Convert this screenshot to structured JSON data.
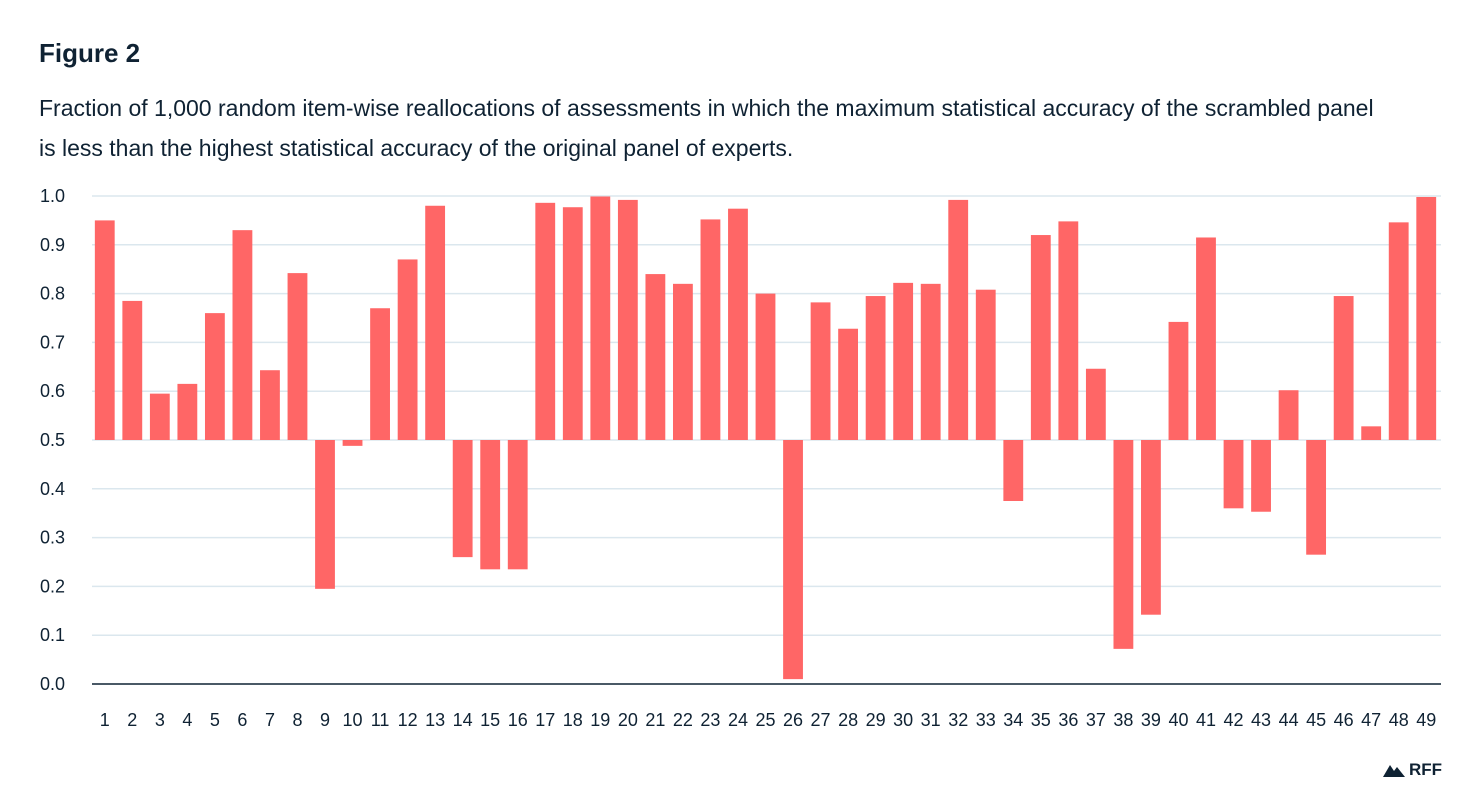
{
  "figure_label": "Figure 2",
  "chart_data": {
    "type": "bar",
    "title": "Fraction of 1,000 random item-wise reallocations of assessments in which the maximum statistical accuracy of the scrambled panel is less than the highest statistical accuracy of the original panel of experts.",
    "xlabel": "",
    "ylabel": "",
    "baseline": 0.5,
    "ylim": [
      0,
      1
    ],
    "yticks": [
      "0.0",
      "0.1",
      "0.2",
      "0.3",
      "0.4",
      "0.5",
      "0.6",
      "0.7",
      "0.8",
      "0.9",
      "1.0"
    ],
    "categories": [
      "1",
      "2",
      "3",
      "4",
      "5",
      "6",
      "7",
      "8",
      "9",
      "10",
      "11",
      "12",
      "13",
      "14",
      "15",
      "16",
      "17",
      "18",
      "19",
      "20",
      "21",
      "22",
      "23",
      "24",
      "25",
      "26",
      "27",
      "28",
      "29",
      "30",
      "31",
      "32",
      "33",
      "34",
      "35",
      "36",
      "37",
      "38",
      "39",
      "40",
      "41",
      "42",
      "43",
      "44",
      "45",
      "46",
      "47",
      "48",
      "49"
    ],
    "values": [
      0.95,
      0.785,
      0.595,
      0.615,
      0.76,
      0.93,
      0.643,
      0.842,
      0.195,
      0.488,
      0.77,
      0.87,
      0.98,
      0.26,
      0.235,
      0.235,
      0.986,
      0.977,
      0.999,
      0.992,
      0.84,
      0.82,
      0.952,
      0.974,
      0.8,
      0.01,
      0.782,
      0.728,
      0.795,
      0.822,
      0.82,
      0.992,
      0.808,
      0.375,
      0.92,
      0.948,
      0.646,
      0.072,
      0.142,
      0.742,
      0.915,
      0.36,
      0.353,
      0.602,
      0.265,
      0.795,
      0.528,
      0.946,
      0.998
    ],
    "grid": true,
    "legend": "none",
    "colors": {
      "bar": "#ff6666",
      "grid": "#dbe7ee",
      "axis": "#0f2233",
      "text": "#0f2233"
    }
  },
  "brand": {
    "logo_text": "RFF"
  }
}
